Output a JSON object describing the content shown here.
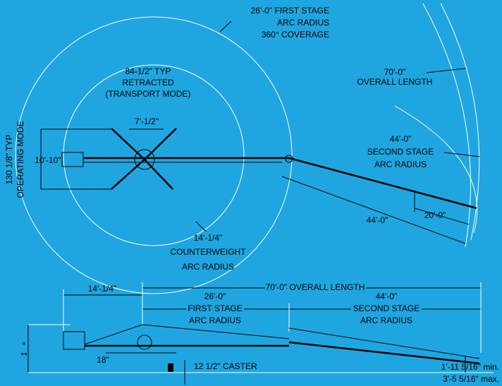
{
  "plan_view": {
    "first_stage": [
      "26'-0\" FIRST STAGE",
      "ARC RADIUS",
      "360° COVERAGE"
    ],
    "overall": [
      "70'-0\"",
      "OVERALL LENGTH"
    ],
    "retracted": [
      "84-1/2\" TYP",
      "RETRACTED",
      "(TRANSPORT MODE)"
    ],
    "width_retracted": "7'-1/2\"",
    "operating": [
      "130 1/8\" TYP",
      "OPERATING MODE"
    ],
    "width_operating": "10'-10\"",
    "second_stage": [
      "44'-0\"",
      "SECOND STAGE",
      "ARC RADIUS"
    ],
    "segment": "20'-0\"",
    "second_length": "44'-0\"",
    "counterweight": [
      "14'-1/4\"",
      "COUNTERWEIGHT",
      "ARC RADIUS"
    ]
  },
  "side_view": {
    "counterweight": "14'-1/4\"",
    "overall": "70'-0\" OVERALL LENGTH",
    "first_stage": [
      "26'-0\"",
      "FIRST STAGE",
      "ARC RADIUS"
    ],
    "second_stage": [
      "44'-0\"",
      "SECOND STAGE",
      "ARC RADIUS"
    ],
    "notes": [
      "*",
      "**"
    ],
    "height": "18\"",
    "caster": "12 1/2\" CASTER",
    "clearance": [
      "1'-11 5/16\" min.",
      "3'-5 5/16\" max."
    ]
  }
}
